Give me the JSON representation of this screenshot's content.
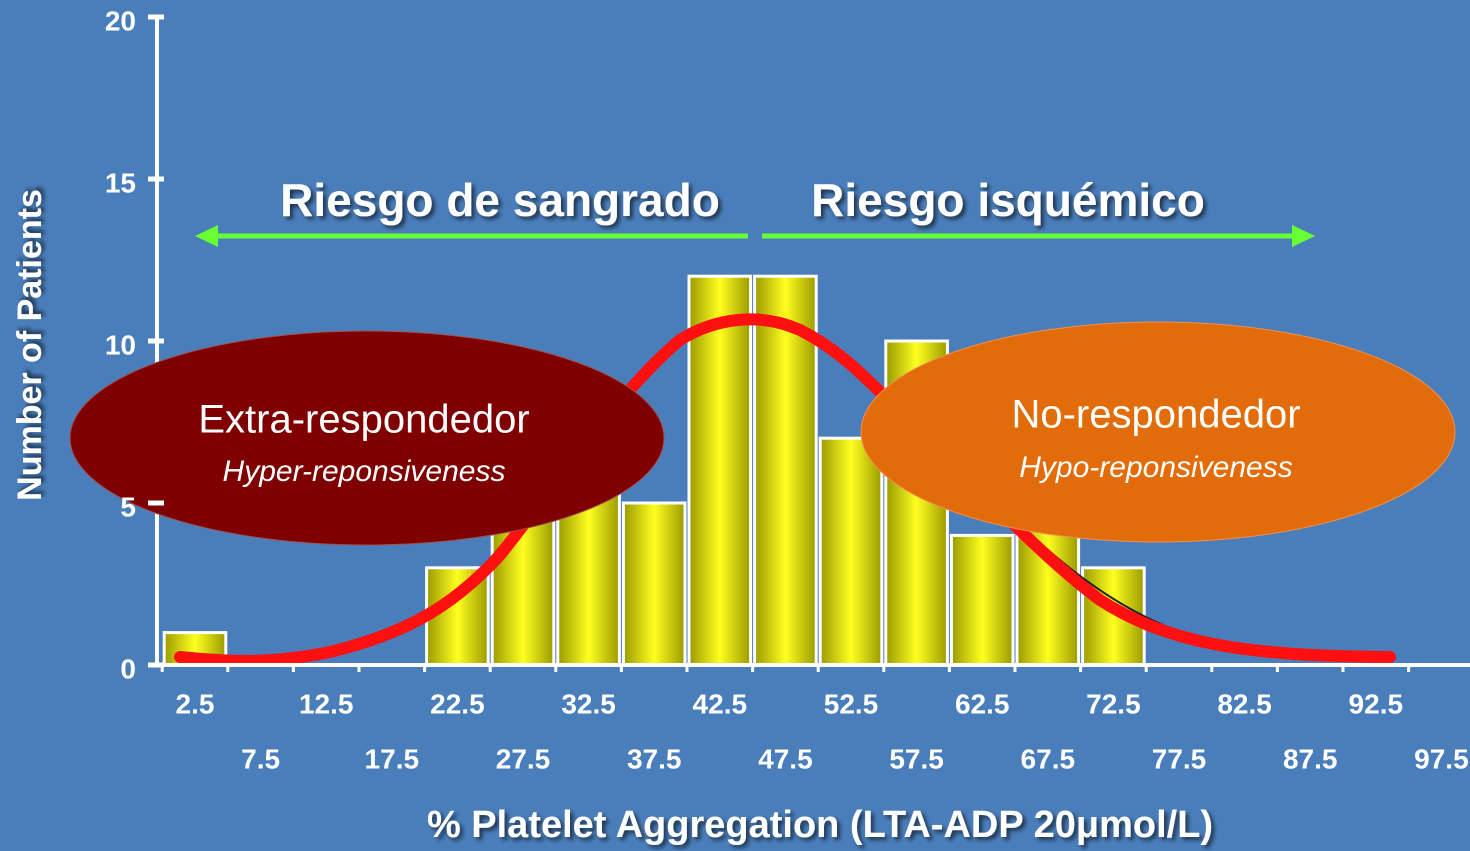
{
  "chart_data": {
    "type": "bar",
    "x_label": "% Platelet Aggregation (LTA-ADP 20μmol/L)",
    "y_label": "Number of Patients",
    "categories": [
      "2.5",
      "7.5",
      "12.5",
      "17.5",
      "22.5",
      "27.5",
      "32.5",
      "37.5",
      "42.5",
      "47.5",
      "52.5",
      "57.5",
      "62.5",
      "67.5",
      "72.5",
      "77.5",
      "82.5",
      "87.5",
      "92.5",
      "97.5"
    ],
    "values": [
      1,
      0,
      0,
      0,
      3,
      5,
      6,
      5,
      12,
      12,
      7,
      10,
      4,
      5,
      3,
      0,
      0,
      0,
      0,
      0
    ],
    "color": "#ffff00",
    "ylim": [
      0,
      20
    ],
    "yticks": [
      0,
      5,
      10,
      15,
      20
    ],
    "annotations": {
      "left_arrow": "Riesgo de sangrado",
      "right_arrow": "Riesgo isquémico",
      "left_ellipse": {
        "title": "Extra-respondedor",
        "subtitle": "Hyper-reponsiveness"
      },
      "right_ellipse": {
        "title": "No-respondedor",
        "subtitle": "Hypo-reponsiveness"
      }
    }
  }
}
